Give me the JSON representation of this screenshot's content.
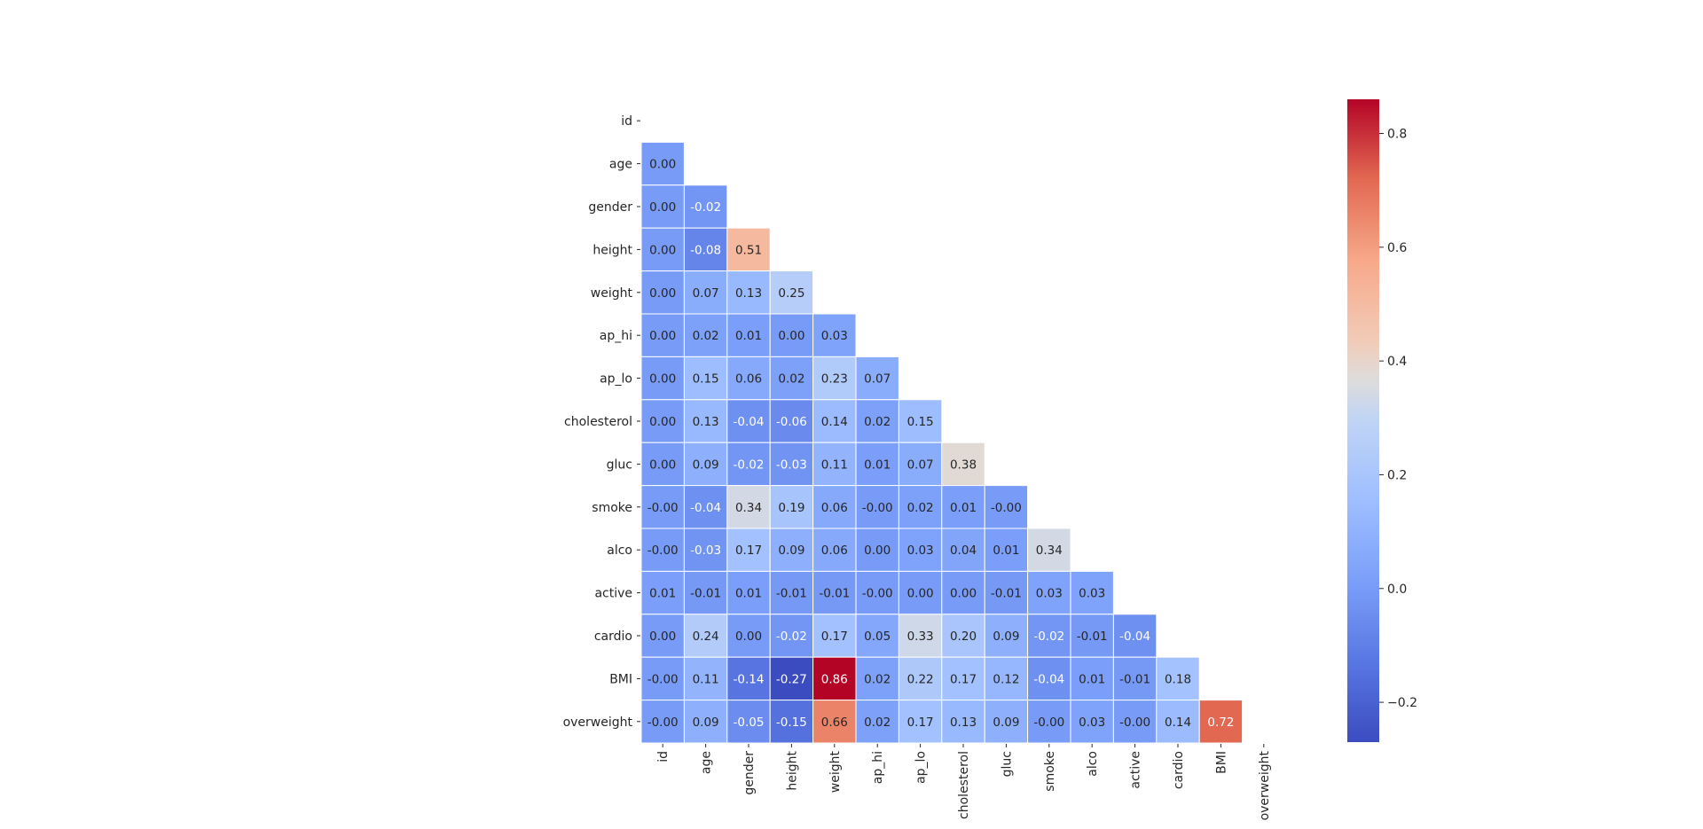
{
  "chart_data": {
    "type": "heatmap",
    "subtype": "lower-triangle correlation matrix",
    "labels": [
      "id",
      "age",
      "gender",
      "height",
      "weight",
      "ap_hi",
      "ap_lo",
      "cholesterol",
      "gluc",
      "smoke",
      "alco",
      "active",
      "cardio",
      "BMI",
      "overweight"
    ],
    "matrix": [
      [],
      [
        "0.00"
      ],
      [
        "0.00",
        "-0.02"
      ],
      [
        "0.00",
        "-0.08",
        "0.51"
      ],
      [
        "0.00",
        "0.07",
        "0.13",
        "0.25"
      ],
      [
        "0.00",
        "0.02",
        "0.01",
        "0.00",
        "0.03"
      ],
      [
        "0.00",
        "0.15",
        "0.06",
        "0.02",
        "0.23",
        "0.07"
      ],
      [
        "0.00",
        "0.13",
        "-0.04",
        "-0.06",
        "0.14",
        "0.02",
        "0.15"
      ],
      [
        "0.00",
        "0.09",
        "-0.02",
        "-0.03",
        "0.11",
        "0.01",
        "0.07",
        "0.38"
      ],
      [
        "-0.00",
        "-0.04",
        "0.34",
        "0.19",
        "0.06",
        "-0.00",
        "0.02",
        "0.01",
        "-0.00"
      ],
      [
        "-0.00",
        "-0.03",
        "0.17",
        "0.09",
        "0.06",
        "0.00",
        "0.03",
        "0.04",
        "0.01",
        "0.34"
      ],
      [
        "0.01",
        "-0.01",
        "0.01",
        "-0.01",
        "-0.01",
        "-0.00",
        "0.00",
        "0.00",
        "-0.01",
        "0.03",
        "0.03"
      ],
      [
        "0.00",
        "0.24",
        "0.00",
        "-0.02",
        "0.17",
        "0.05",
        "0.33",
        "0.20",
        "0.09",
        "-0.02",
        "-0.01",
        "-0.04"
      ],
      [
        "-0.00",
        "0.11",
        "-0.14",
        "-0.27",
        "0.86",
        "0.02",
        "0.22",
        "0.17",
        "0.12",
        "-0.04",
        "0.01",
        "-0.01",
        "0.18"
      ],
      [
        "-0.00",
        "0.09",
        "-0.05",
        "-0.15",
        "0.66",
        "0.02",
        "0.17",
        "0.13",
        "0.09",
        "-0.00",
        "0.03",
        "-0.00",
        "0.14",
        "0.72"
      ]
    ],
    "colormap": "coolwarm",
    "vmin": -0.27,
    "vmax": 0.86,
    "colorbar": {
      "ticks": [
        -0.2,
        0.0,
        0.2,
        0.4,
        0.6,
        0.8
      ],
      "tick_labels": [
        "−0.2",
        "0.0",
        "0.2",
        "0.4",
        "0.6",
        "0.8"
      ]
    },
    "annotated": true,
    "cell_border_color": "#ffffff",
    "title": "",
    "xlabel": "",
    "ylabel": ""
  }
}
